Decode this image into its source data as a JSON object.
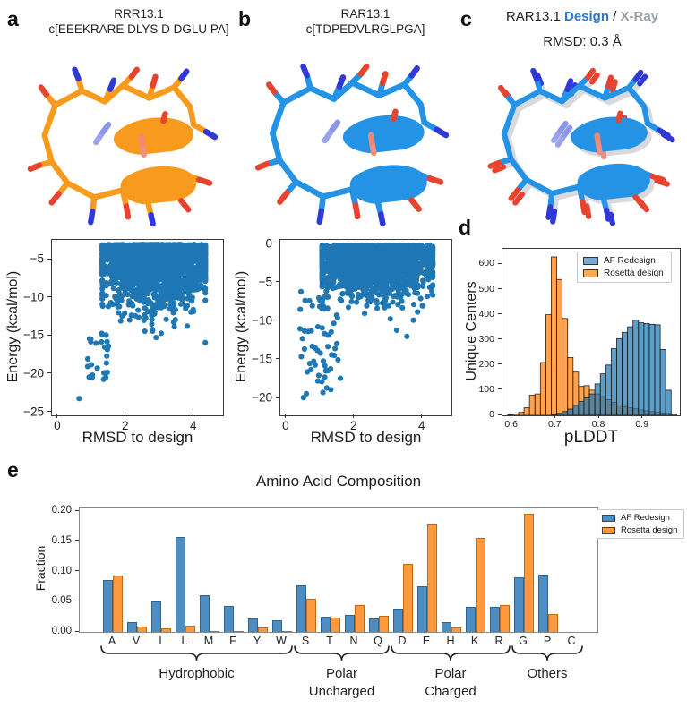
{
  "figure": {
    "panels": {
      "a": {
        "letter": "a",
        "title": "RRR13.1",
        "sequence": "c[EEEKRARE DLYS D DGLU PA]"
      },
      "b": {
        "letter": "b",
        "title": "RAR13.1",
        "sequence": "c[TDPEDVLRGLPGA]"
      },
      "c": {
        "letter": "c",
        "title_prefix": "RAR13.1",
        "title_design": "Design",
        "title_slash": "/",
        "title_xray": "X-Ray",
        "rmsd": "RMSD: 0.3 Å"
      },
      "d": {
        "letter": "d"
      },
      "e": {
        "letter": "e"
      }
    }
  },
  "colors": {
    "scatter_point": "#1f77b4",
    "hist_blue": "#1f77b4",
    "hist_orange": "#ff7f0e",
    "bar_blue": "#4c8dc4",
    "bar_orange": "#ff993e",
    "structure_orange": "#f79a1e",
    "structure_blue": "#2493e6",
    "structure_gray": "#d8d9de",
    "nitrogen_blue": "#3038d8",
    "oxygen_red": "#e8432e",
    "title_design_blue": "#2979c8",
    "title_xray_gray": "#9aa0a6"
  },
  "chart_data": [
    {
      "type": "scatter",
      "panel": "a",
      "xlabel": "RMSD to design",
      "ylabel": "Energy (kcal/mol)",
      "xlim": [
        -0.18,
        4.85
      ],
      "ylim": [
        -25.4,
        -2.4
      ],
      "xticks": [
        0,
        2,
        4
      ],
      "xtick_labels": [
        "0",
        "2",
        "4"
      ],
      "yticks": [
        -5,
        -10,
        -15,
        -20,
        -25
      ],
      "ytick_labels": [
        "−5",
        "−10",
        "−15",
        "−20",
        "−25"
      ],
      "point_color": "#1f77b4",
      "gen": {
        "seed": 42,
        "n": 2600,
        "xmu": 2.85,
        "xsd": 0.75,
        "xmin": 1.3,
        "xmax": 4.33,
        "ytop": -3.0,
        "yspread": 4.3,
        "yfloor": -21.2,
        "tail": {
          "n": 26,
          "x0": 0.72,
          "x1": 1.55,
          "y0": -14.5,
          "y1": -21.2
        }
      },
      "outliers": [
        [
          0.62,
          -23.2
        ]
      ]
    },
    {
      "type": "scatter",
      "panel": "b",
      "xlabel": "RMSD to design",
      "ylabel": "Energy (kcal/mol)",
      "xlim": [
        -0.18,
        4.85
      ],
      "ylim": [
        -22.2,
        0.55
      ],
      "xticks": [
        0,
        2,
        4
      ],
      "xtick_labels": [
        "0",
        "2",
        "4"
      ],
      "yticks": [
        0,
        -5,
        -10,
        -15,
        -20
      ],
      "ytick_labels": [
        "0",
        "−5",
        "−10",
        "−15",
        "−20"
      ],
      "point_color": "#1f77b4",
      "gen": {
        "seed": 7,
        "n": 2600,
        "xmu": 2.6,
        "xsd": 0.8,
        "xmin": 1.05,
        "xmax": 4.3,
        "ytop": -0.15,
        "yspread": 3.6,
        "yfloor": -14.8,
        "tail": {
          "n": 55,
          "x0": 0.38,
          "x1": 1.6,
          "y0": -6.0,
          "y1": -19.5
        }
      },
      "outliers": [
        [
          0.5,
          -19.9
        ]
      ]
    },
    {
      "type": "histogram",
      "panel": "d",
      "xlabel": "pLDDT",
      "ylabel": "Unique Centers",
      "xlim": [
        0.578,
        0.985
      ],
      "ylim": [
        0,
        662
      ],
      "xticks": [
        0.6,
        0.7,
        0.8,
        0.9
      ],
      "xtick_labels": [
        "0.6",
        "0.7",
        "0.8",
        "0.9"
      ],
      "yticks": [
        0,
        100,
        200,
        300,
        400,
        500,
        600
      ],
      "ytick_labels": [
        "0",
        "100",
        "200",
        "300",
        "400",
        "500",
        "600"
      ],
      "bin_start": 0.59,
      "bin_width": 0.0125,
      "legend_position": "upper right",
      "series": [
        {
          "name": "AF Redesign",
          "color": "#1f77b4",
          "counts": [
            0,
            0,
            0,
            0,
            0,
            0,
            0,
            0,
            3,
            8,
            15,
            25,
            40,
            55,
            70,
            85,
            125,
            165,
            200,
            265,
            305,
            330,
            352,
            378,
            368,
            365,
            362,
            360,
            262,
            100,
            6
          ]
        },
        {
          "name": "Rosetta design",
          "color": "#ff7f0e",
          "counts": [
            3,
            6,
            12,
            30,
            80,
            85,
            210,
            400,
            630,
            540,
            385,
            230,
            172,
            115,
            118,
            100,
            85,
            75,
            62,
            52,
            42,
            35,
            30,
            26,
            22,
            18,
            15,
            12,
            10,
            8,
            5
          ]
        }
      ]
    },
    {
      "type": "bar",
      "panel": "e",
      "title": "Amino Acid Composition",
      "xlabel": "",
      "ylabel": "Fraction",
      "ylim": [
        0,
        0.206
      ],
      "yticks": [
        0,
        0.05,
        0.1,
        0.15,
        0.2
      ],
      "ytick_labels": [
        "0.00",
        "0.05",
        "0.10",
        "0.15",
        "0.20"
      ],
      "categories": [
        "A",
        "V",
        "I",
        "L",
        "M",
        "F",
        "Y",
        "W",
        "S",
        "T",
        "N",
        "Q",
        "D",
        "E",
        "H",
        "K",
        "R",
        "G",
        "P",
        "C"
      ],
      "series": [
        {
          "name": "AF Redesign",
          "color": "#4c8dc4",
          "edge": "#2f6390",
          "values": [
            0.086,
            0.017,
            0.05,
            0.157,
            0.061,
            0.043,
            0.022,
            0.02,
            0.077,
            0.025,
            0.028,
            0.022,
            0.039,
            0.075,
            0.016,
            0.041,
            0.042,
            0.09,
            0.095,
            0.0
          ]
        },
        {
          "name": "Rosetta design",
          "color": "#ff993e",
          "edge": "#bf6a13",
          "values": [
            0.094,
            0.009,
            0.006,
            0.011,
            0.002,
            0.001,
            0.007,
            0.002,
            0.055,
            0.023,
            0.045,
            0.026,
            0.113,
            0.18,
            0.008,
            0.155,
            0.044,
            0.196,
            0.03,
            0.0
          ]
        }
      ],
      "groups": [
        {
          "label": "Hydrophobic",
          "from": 0,
          "to": 7
        },
        {
          "label": "Polar\nUncharged",
          "from": 8,
          "to": 11
        },
        {
          "label": "Polar\nCharged",
          "from": 12,
          "to": 16
        },
        {
          "label": "Others",
          "from": 17,
          "to": 19
        }
      ],
      "legend_position": "outside upper right"
    }
  ]
}
